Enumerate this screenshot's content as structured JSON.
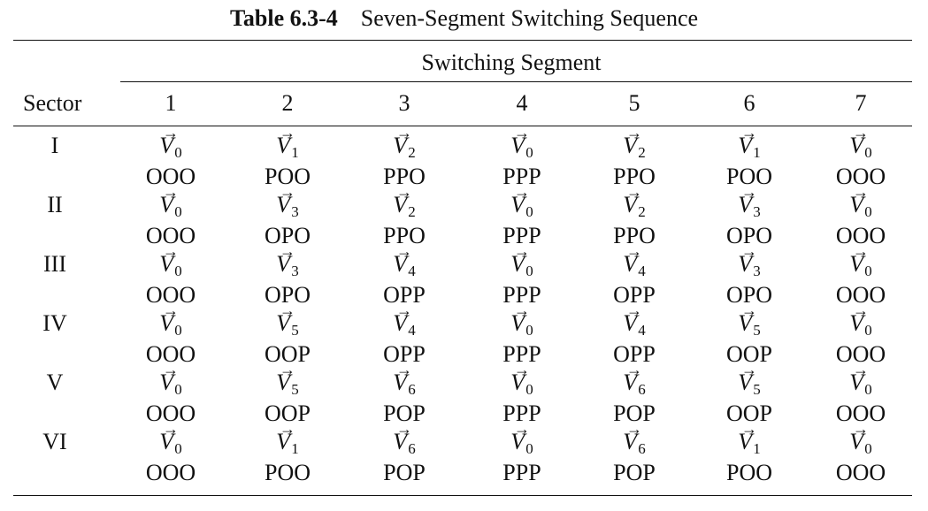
{
  "table": {
    "number": "Table 6.3-4",
    "caption": "Seven-Segment Switching Sequence",
    "row_header": "Sector",
    "group_header": "Switching Segment",
    "segments": [
      "1",
      "2",
      "3",
      "4",
      "5",
      "6",
      "7"
    ],
    "rows": [
      {
        "sector": "I",
        "cells": [
          {
            "v": "V",
            "sub": "0",
            "state": "OOO"
          },
          {
            "v": "V",
            "sub": "1",
            "state": "POO"
          },
          {
            "v": "V",
            "sub": "2",
            "state": "PPO"
          },
          {
            "v": "V",
            "sub": "0",
            "state": "PPP"
          },
          {
            "v": "V",
            "sub": "2",
            "state": "PPO"
          },
          {
            "v": "V",
            "sub": "1",
            "state": "POO"
          },
          {
            "v": "V",
            "sub": "0",
            "state": "OOO"
          }
        ]
      },
      {
        "sector": "II",
        "cells": [
          {
            "v": "V",
            "sub": "0",
            "state": "OOO"
          },
          {
            "v": "V",
            "sub": "3",
            "state": "OPO"
          },
          {
            "v": "V",
            "sub": "2",
            "state": "PPO"
          },
          {
            "v": "V",
            "sub": "0",
            "state": "PPP"
          },
          {
            "v": "V",
            "sub": "2",
            "state": "PPO"
          },
          {
            "v": "V",
            "sub": "3",
            "state": "OPO"
          },
          {
            "v": "V",
            "sub": "0",
            "state": "OOO"
          }
        ]
      },
      {
        "sector": "III",
        "cells": [
          {
            "v": "V",
            "sub": "0",
            "state": "OOO"
          },
          {
            "v": "V",
            "sub": "3",
            "state": "OPO"
          },
          {
            "v": "V",
            "sub": "4",
            "state": "OPP"
          },
          {
            "v": "V",
            "sub": "0",
            "state": "PPP"
          },
          {
            "v": "V",
            "sub": "4",
            "state": "OPP"
          },
          {
            "v": "V",
            "sub": "3",
            "state": "OPO"
          },
          {
            "v": "V",
            "sub": "0",
            "state": "OOO"
          }
        ]
      },
      {
        "sector": "IV",
        "cells": [
          {
            "v": "V",
            "sub": "0",
            "state": "OOO"
          },
          {
            "v": "V",
            "sub": "5",
            "state": "OOP"
          },
          {
            "v": "V",
            "sub": "4",
            "state": "OPP"
          },
          {
            "v": "V",
            "sub": "0",
            "state": "PPP"
          },
          {
            "v": "V",
            "sub": "4",
            "state": "OPP"
          },
          {
            "v": "V",
            "sub": "5",
            "state": "OOP"
          },
          {
            "v": "V",
            "sub": "0",
            "state": "OOO"
          }
        ]
      },
      {
        "sector": "V",
        "cells": [
          {
            "v": "V",
            "sub": "0",
            "state": "OOO"
          },
          {
            "v": "V",
            "sub": "5",
            "state": "OOP"
          },
          {
            "v": "V",
            "sub": "6",
            "state": "POP"
          },
          {
            "v": "V",
            "sub": "0",
            "state": "PPP"
          },
          {
            "v": "V",
            "sub": "6",
            "state": "POP"
          },
          {
            "v": "V",
            "sub": "5",
            "state": "OOP"
          },
          {
            "v": "V",
            "sub": "0",
            "state": "OOO"
          }
        ]
      },
      {
        "sector": "VI",
        "cells": [
          {
            "v": "V",
            "sub": "0",
            "state": "OOO"
          },
          {
            "v": "V",
            "sub": "1",
            "state": "POO"
          },
          {
            "v": "V",
            "sub": "6",
            "state": "POP"
          },
          {
            "v": "V",
            "sub": "0",
            "state": "PPP"
          },
          {
            "v": "V",
            "sub": "6",
            "state": "POP"
          },
          {
            "v": "V",
            "sub": "1",
            "state": "POO"
          },
          {
            "v": "V",
            "sub": "0",
            "state": "OOO"
          }
        ]
      }
    ]
  }
}
